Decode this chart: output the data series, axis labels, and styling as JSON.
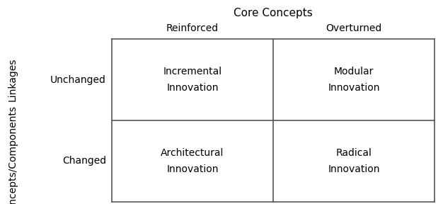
{
  "title": "Core Concepts",
  "col_headers": [
    "Reinforced",
    "Overturned"
  ],
  "row_headers": [
    "Unchanged",
    "Changed"
  ],
  "y_label_top": "Linkages",
  "y_label_bottom": "Concepts/Components",
  "cells": [
    [
      "Incremental\nInnovation",
      "Modular\nInnovation"
    ],
    [
      "Architectural\nInnovation",
      "Radical\nInnovation"
    ]
  ],
  "grid_color": "#555555",
  "text_color": "#000000",
  "bg_color": "#ffffff",
  "title_fontsize": 11,
  "header_fontsize": 10,
  "cell_fontsize": 10,
  "row_header_fontsize": 10,
  "ylabel_fontsize": 10
}
